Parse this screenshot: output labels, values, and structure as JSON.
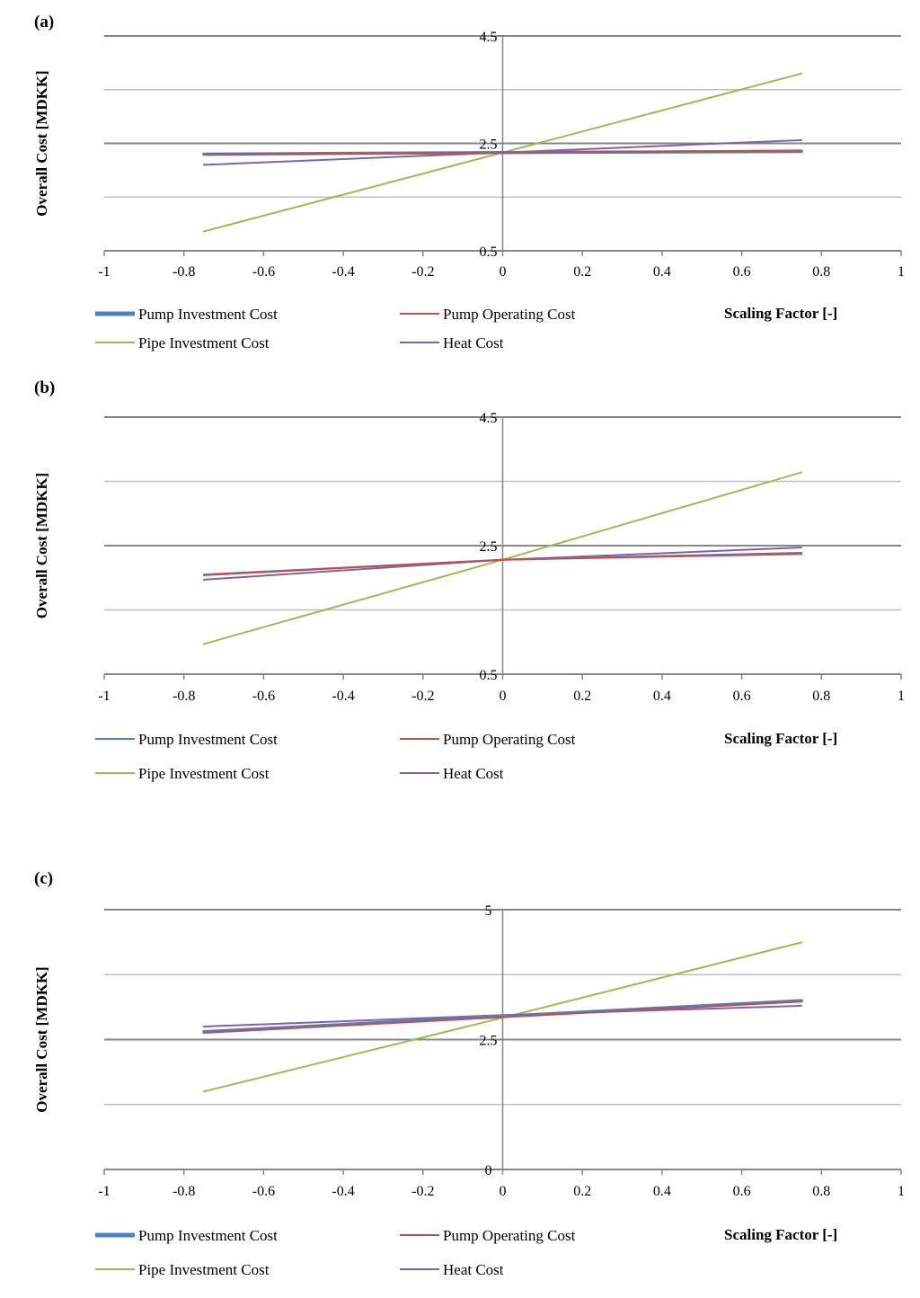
{
  "colors": {
    "pump_investment": "#4f81bd",
    "pump_operating": "#c0504d",
    "pipe_investment": "#9bbb59",
    "heat": "#8064a2",
    "grid_major": "#868686",
    "grid_minor": "#bfbfbf"
  },
  "chart_data": [
    {
      "type": "line",
      "panel_label": "(a)",
      "xlabel": "Scaling Factor [-]",
      "ylabel": "Overall Cost [MDKK]",
      "xlim": [
        -1,
        1
      ],
      "ylim": [
        0.5,
        4.5
      ],
      "x_ticks": [
        "-1",
        "-0.8",
        "-0.6",
        "-0.4",
        "-0.2",
        "0",
        "0.2",
        "0.4",
        "0.6",
        "0.8",
        "1"
      ],
      "y_tick_values": [
        0.5,
        1.5,
        2.5,
        3.5,
        4.5
      ],
      "y_tick_labels": [
        "0.5",
        "",
        "2.5",
        "",
        "4.5"
      ],
      "grid": true,
      "legend_position": "bottom",
      "series": [
        {
          "name": "Pump Investment Cost",
          "key": "pump_investment",
          "x": [
            -0.75,
            0,
            0.75
          ],
          "y": [
            2.3,
            2.33,
            2.35
          ]
        },
        {
          "name": "Pump Operating Cost",
          "key": "pump_operating",
          "x": [
            -0.75,
            0,
            0.75
          ],
          "y": [
            2.29,
            2.33,
            2.37
          ]
        },
        {
          "name": "Pipe Investment Cost",
          "key": "pipe_investment",
          "x": [
            -0.75,
            0,
            0.75
          ],
          "y": [
            0.86,
            2.33,
            3.8
          ]
        },
        {
          "name": "Heat Cost",
          "key": "heat",
          "x": [
            -0.75,
            0,
            0.75
          ],
          "y": [
            2.1,
            2.33,
            2.56
          ]
        }
      ]
    },
    {
      "type": "line",
      "panel_label": "(b)",
      "xlabel": "Scaling Factor [-]",
      "ylabel": "Overall Cost [MDKK]",
      "xlim": [
        -1,
        1
      ],
      "ylim": [
        0.5,
        4.5
      ],
      "x_ticks": [
        "-1",
        "-0.8",
        "-0.6",
        "-0.4",
        "-0.2",
        "0",
        "0.2",
        "0.4",
        "0.6",
        "0.8",
        "1"
      ],
      "y_tick_values": [
        0.5,
        1.5,
        2.5,
        3.5,
        4.5
      ],
      "y_tick_labels": [
        "0.5",
        "",
        "2.5",
        "",
        "4.5"
      ],
      "grid": true,
      "legend_position": "bottom",
      "series": [
        {
          "name": "Pump Investment Cost",
          "key": "pump_investment",
          "x": [
            -0.75,
            0,
            0.75
          ],
          "y": [
            2.05,
            2.28,
            2.39
          ]
        },
        {
          "name": "Pump Operating Cost",
          "key": "pump_operating",
          "x": [
            -0.75,
            0,
            0.75
          ],
          "y": [
            2.04,
            2.28,
            2.37
          ]
        },
        {
          "name": "Pipe Investment Cost",
          "key": "pipe_investment",
          "x": [
            -0.75,
            0,
            0.75
          ],
          "y": [
            0.97,
            2.28,
            3.64
          ]
        },
        {
          "name": "Heat Cost",
          "key": "heat",
          "x": [
            -0.75,
            0,
            0.75
          ],
          "y": [
            1.97,
            2.28,
            2.47
          ]
        }
      ]
    },
    {
      "type": "line",
      "panel_label": "(c)",
      "xlabel": "Scaling Factor [-]",
      "ylabel": "Overall Cost [MDKK]",
      "xlim": [
        -1,
        1
      ],
      "ylim": [
        0,
        5
      ],
      "x_ticks": [
        "-1",
        "-0.8",
        "-0.6",
        "-0.4",
        "-0.2",
        "0",
        "0.2",
        "0.4",
        "0.6",
        "0.8",
        "1"
      ],
      "y_tick_values": [
        0,
        1.25,
        2.5,
        3.75,
        5
      ],
      "y_tick_labels": [
        "0",
        "",
        "2.5",
        "",
        "5"
      ],
      "grid": true,
      "legend_position": "bottom",
      "series": [
        {
          "name": "Pump Investment Cost",
          "key": "pump_investment",
          "x": [
            -0.75,
            0,
            0.75
          ],
          "y": [
            2.65,
            2.95,
            3.25
          ]
        },
        {
          "name": "Pump Operating Cost",
          "key": "pump_operating",
          "x": [
            -0.75,
            0,
            0.75
          ],
          "y": [
            2.63,
            2.93,
            3.23
          ]
        },
        {
          "name": "Pipe Investment Cost",
          "key": "pipe_investment",
          "x": [
            -0.75,
            0,
            0.75
          ],
          "y": [
            1.5,
            2.92,
            4.37
          ]
        },
        {
          "name": "Heat Cost",
          "key": "heat",
          "x": [
            -0.75,
            0,
            0.75
          ],
          "y": [
            2.75,
            2.97,
            3.15
          ]
        }
      ]
    }
  ]
}
